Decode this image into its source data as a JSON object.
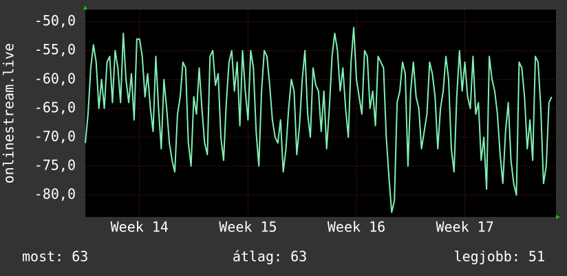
{
  "chart_data": {
    "type": "line",
    "ylabel": "onlinestream.live",
    "x": [
      13.5,
      13.525,
      13.55,
      13.575,
      13.6,
      13.625,
      13.65,
      13.675,
      13.7,
      13.725,
      13.75,
      13.775,
      13.8,
      13.825,
      13.85,
      13.875,
      13.9,
      13.925,
      13.95,
      13.975,
      14,
      14.025,
      14.05,
      14.075,
      14.1,
      14.125,
      14.15,
      14.175,
      14.2,
      14.225,
      14.25,
      14.275,
      14.3,
      14.325,
      14.35,
      14.375,
      14.4,
      14.425,
      14.45,
      14.475,
      14.5,
      14.525,
      14.55,
      14.575,
      14.6,
      14.625,
      14.65,
      14.675,
      14.7,
      14.725,
      14.75,
      14.775,
      14.8,
      14.825,
      14.85,
      14.875,
      14.9,
      14.925,
      14.95,
      14.975,
      15,
      15.025,
      15.05,
      15.075,
      15.1,
      15.125,
      15.15,
      15.175,
      15.2,
      15.225,
      15.25,
      15.275,
      15.3,
      15.325,
      15.35,
      15.375,
      15.4,
      15.425,
      15.45,
      15.475,
      15.5,
      15.525,
      15.55,
      15.575,
      15.6,
      15.625,
      15.65,
      15.675,
      15.7,
      15.725,
      15.75,
      15.775,
      15.8,
      15.825,
      15.85,
      15.875,
      15.9,
      15.925,
      15.95,
      15.975,
      16,
      16.025,
      16.05,
      16.075,
      16.1,
      16.125,
      16.15,
      16.175,
      16.2,
      16.225,
      16.25,
      16.275,
      16.3,
      16.325,
      16.35,
      16.375,
      16.4,
      16.425,
      16.45,
      16.475,
      16.5,
      16.525,
      16.55,
      16.575,
      16.6,
      16.625,
      16.65,
      16.675,
      16.7,
      16.725,
      16.75,
      16.775,
      16.8,
      16.825,
      16.85,
      16.875,
      16.9,
      16.925,
      16.95,
      16.975,
      17,
      17.025,
      17.05,
      17.075,
      17.1,
      17.125,
      17.15,
      17.175,
      17.2,
      17.225,
      17.25,
      17.275,
      17.3,
      17.325,
      17.35,
      17.375,
      17.4,
      17.425,
      17.45,
      17.475,
      17.5,
      17.525,
      17.55,
      17.575,
      17.6,
      17.625,
      17.65,
      17.675,
      17.7,
      17.725,
      17.75,
      17.775,
      17.8
    ],
    "series": [
      {
        "color": "#7ff0b4",
        "values": [
          -71,
          -66,
          -58,
          -54,
          -57,
          -65,
          -60,
          -65,
          -57,
          -56,
          -64,
          -55,
          -58,
          -64,
          -52,
          -60,
          -64,
          -59,
          -67,
          -53,
          -53,
          -56,
          -63,
          -59,
          -65,
          -69,
          -56,
          -65,
          -72,
          -60,
          -65,
          -71,
          -74,
          -76,
          -66,
          -63,
          -57,
          -58,
          -71,
          -75,
          -63,
          -66,
          -58,
          -65,
          -71,
          -73,
          -56,
          -55,
          -61,
          -59,
          -70,
          -74,
          -64,
          -57,
          -55,
          -62,
          -57,
          -68,
          -55,
          -62,
          -67,
          -55,
          -58,
          -69,
          -75,
          -62,
          -55,
          -56,
          -61,
          -67,
          -70,
          -71,
          -67,
          -76,
          -72,
          -65,
          -60,
          -62,
          -73,
          -68,
          -60,
          -55,
          -66,
          -70,
          -58,
          -61,
          -62,
          -69,
          -62,
          -72,
          -65,
          -56,
          -52,
          -55,
          -62,
          -58,
          -65,
          -70,
          -57,
          -51,
          -60,
          -63,
          -66,
          -55,
          -56,
          -65,
          -62,
          -68,
          -56,
          -57,
          -58,
          -70,
          -77,
          -83,
          -81,
          -64,
          -62,
          -57,
          -59,
          -75,
          -62,
          -57,
          -63,
          -65,
          -72,
          -69,
          -66,
          -57,
          -59,
          -63,
          -72,
          -65,
          -62,
          -56,
          -60,
          -72,
          -76,
          -63,
          -55,
          -62,
          -57,
          -63,
          -65,
          -56,
          -66,
          -64,
          -74,
          -70,
          -79,
          -56,
          -60,
          -62,
          -66,
          -73,
          -78,
          -69,
          -64,
          -74,
          -78,
          -80,
          -57,
          -58,
          -63,
          -72,
          -67,
          -74,
          -56,
          -57,
          -65,
          -78,
          -75,
          -64,
          -63
        ]
      }
    ],
    "xlim": [
      13.5,
      17.84
    ],
    "xticks": [
      {
        "value": 14,
        "label": "Week 14"
      },
      {
        "value": 15,
        "label": "Week 15"
      },
      {
        "value": 16,
        "label": "Week 16"
      },
      {
        "value": 17,
        "label": "Week 17"
      }
    ],
    "ylim": [
      -83.8,
      -47.9
    ],
    "yticks": [
      {
        "value": -50,
        "label": "-50,0"
      },
      {
        "value": -55,
        "label": "-55,0"
      },
      {
        "value": -60,
        "label": "-60,0"
      },
      {
        "value": -65,
        "label": "-65,0"
      },
      {
        "value": -70,
        "label": "-70,0"
      },
      {
        "value": -75,
        "label": "-75,0"
      },
      {
        "value": -80,
        "label": "-80,0"
      }
    ],
    "grid": true,
    "stats": {
      "current": "most: 63",
      "average": "átlag: 63",
      "best": "legjobb: 51"
    }
  }
}
